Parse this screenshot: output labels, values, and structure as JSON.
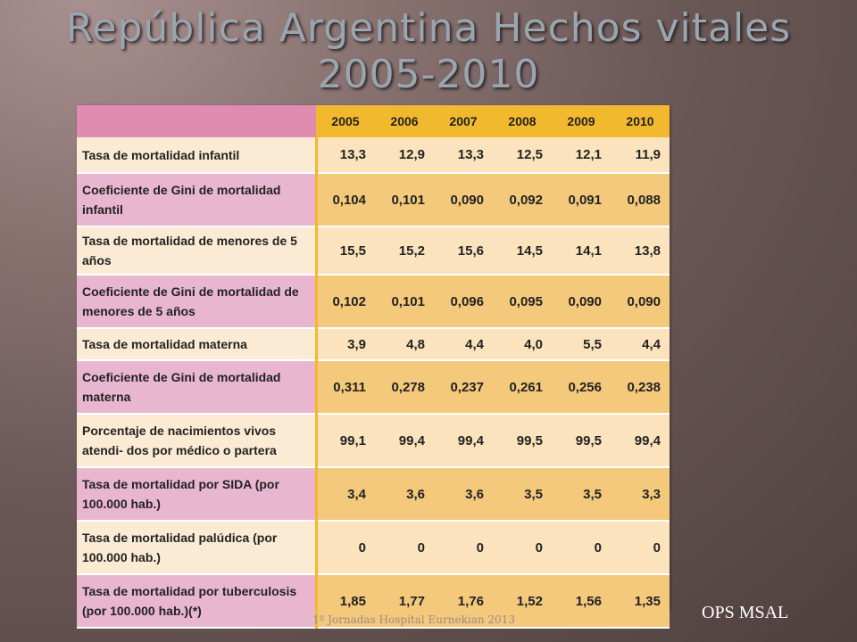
{
  "title": "República Argentina Hechos vitales 2005-2010",
  "table": {
    "years": [
      "2005",
      "2006",
      "2007",
      "2008",
      "2009",
      "2010"
    ],
    "rows": [
      {
        "label": "Tasa de mortalidad infantil",
        "values": [
          "13,3",
          "12,9",
          "13,3",
          "12,5",
          "12,1",
          "11,9"
        ]
      },
      {
        "label": "Coeficiente de Gini de mortalidad infantil",
        "values": [
          "0,104",
          "0,101",
          "0,090",
          "0,092",
          "0,091",
          "0,088"
        ]
      },
      {
        "label": "Tasa de mortalidad de menores de 5 años",
        "values": [
          "15,5",
          "15,2",
          "15,6",
          "14,5",
          "14,1",
          "13,8"
        ]
      },
      {
        "label": "Coeficiente de Gini de mortalidad de menores de 5 años",
        "values": [
          "0,102",
          "0,101",
          "0,096",
          "0,095",
          "0,090",
          "0,090"
        ]
      },
      {
        "label": "Tasa de mortalidad materna",
        "values": [
          "3,9",
          "4,8",
          "4,4",
          "4,0",
          "5,5",
          "4,4"
        ]
      },
      {
        "label": "Coeficiente de Gini de mortalidad materna",
        "values": [
          "0,311",
          "0,278",
          "0,237",
          "0,261",
          "0,256",
          "0,238"
        ]
      },
      {
        "label": "Porcentaje de nacimientos vivos atendi- dos por médico o partera",
        "values": [
          "99,1",
          "99,4",
          "99,4",
          "99,5",
          "99,5",
          "99,4"
        ]
      },
      {
        "label": "Tasa de mortalidad por SIDA (por 100.000 hab.)",
        "values": [
          "3,4",
          "3,6",
          "3,6",
          "3,5",
          "3,5",
          "3,3"
        ]
      },
      {
        "label": "Tasa de mortalidad palúdica (por 100.000 hab.)",
        "values": [
          "0",
          "0",
          "0",
          "0",
          "0",
          "0"
        ]
      },
      {
        "label": "Tasa de mortalidad por tuberculosis (por 100.000 hab.)(*)",
        "values": [
          "1,85",
          "1,77",
          "1,76",
          "1,52",
          "1,56",
          "1,35"
        ]
      }
    ]
  },
  "footer": "1º Jornadas Hospital Eurnekian 2013",
  "credit": "OPS MSAL",
  "colors": {
    "header_corner": "#e08bb0",
    "header_year": "#f2b92e",
    "row_light": "#fcebd4",
    "row_dark": "#e9b6cf"
  }
}
